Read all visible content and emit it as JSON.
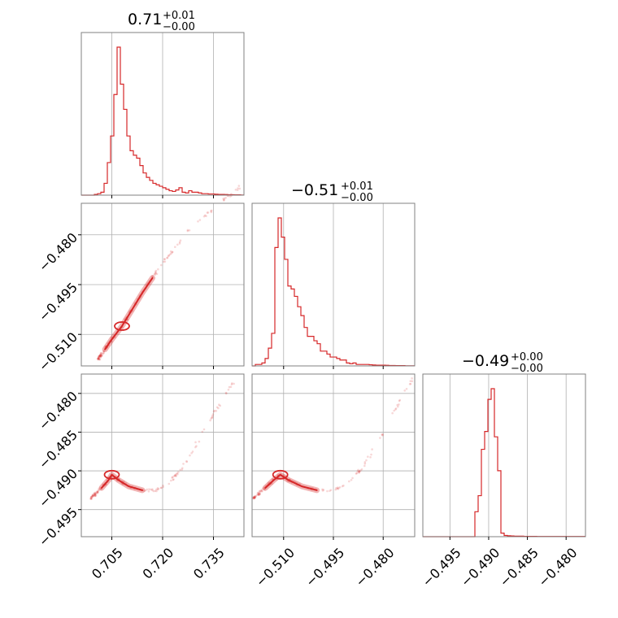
{
  "colors": {
    "series": "#d62728",
    "grid": "#b0b0b0",
    "frame": "#808080"
  },
  "chart_data": {
    "type": "corner",
    "parameters": [
      {
        "range": [
          0.696,
          0.744
        ],
        "ticks": [
          0.705,
          0.72,
          0.735
        ],
        "tick_labels": [
          "0.705",
          "0.720",
          "0.735"
        ],
        "title_main": "0.71",
        "title_plus": "+0.01",
        "title_minus": "−0.00"
      },
      {
        "range": [
          -0.5195,
          -0.4705
        ],
        "ticks": [
          -0.51,
          -0.495,
          -0.48
        ],
        "tick_labels": [
          "−0.510",
          "−0.495",
          "−0.480"
        ],
        "title_main": "−0.51",
        "title_plus": "+0.01",
        "title_minus": "−0.00"
      },
      {
        "range": [
          -0.4985,
          -0.4775
        ],
        "ticks": [
          -0.495,
          -0.49,
          -0.485,
          -0.48
        ],
        "tick_labels": [
          "−0.495",
          "−0.490",
          "−0.485",
          "−0.480"
        ],
        "title_main": "−0.49",
        "title_plus": "+0.00",
        "title_minus": "−0.00"
      }
    ],
    "histograms": [
      {
        "bins": [
          0.696,
          0.744
        ],
        "counts": [
          0,
          0,
          0,
          0,
          0.5,
          1,
          2,
          8,
          22,
          40,
          68,
          100,
          75,
          58,
          40,
          30,
          27,
          25,
          20,
          15,
          12,
          10,
          8,
          7,
          6,
          5,
          4,
          3,
          2.5,
          3.5,
          5,
          2,
          1.5,
          3,
          2,
          2,
          1.5,
          1,
          1,
          0.8,
          0.8,
          0.6,
          0.5,
          0.5,
          0.4,
          0.3,
          0.3,
          0.2,
          0.2,
          0.1
        ]
      },
      {
        "bins": [
          -0.5195,
          -0.4705
        ],
        "counts": [
          0,
          1,
          1,
          2,
          5,
          12,
          22,
          80,
          100,
          87,
          72,
          54,
          52,
          47,
          40,
          34,
          26,
          20,
          20,
          17,
          15,
          10,
          10,
          8,
          6,
          6,
          5,
          4,
          4,
          2,
          1.5,
          2,
          1,
          1,
          1,
          1,
          0.8,
          0.6,
          0.5,
          0.5,
          0.5,
          0.4,
          0.3,
          0.3,
          0.2,
          0.2,
          0.2,
          0.1,
          0.1,
          0.1
        ]
      },
      {
        "bins": [
          -0.4985,
          -0.4775
        ],
        "counts": [
          0,
          0,
          0,
          0,
          0,
          0,
          0,
          0,
          0,
          0,
          0,
          0,
          0,
          0,
          0,
          0,
          14,
          23,
          49,
          59,
          77,
          83,
          56,
          37,
          2,
          0.7,
          0.5,
          0.4,
          0.3,
          0.3,
          0.3,
          0.2,
          0.2,
          0.2,
          0.2,
          0.1,
          0.1,
          0.1,
          0.1,
          0.1,
          0.1,
          0.1,
          0.1,
          0.1,
          0.1,
          0.1,
          0.1,
          0.1,
          0.1,
          0.1
        ]
      }
    ],
    "scatter_2d": [
      {
        "x_param": 0,
        "y_param": 1,
        "trace": [
          [
            0.701,
            -0.5175
          ],
          [
            0.703,
            -0.5145
          ],
          [
            0.705,
            -0.5115
          ],
          [
            0.708,
            -0.5075
          ],
          [
            0.711,
            -0.5025
          ],
          [
            0.714,
            -0.4975
          ],
          [
            0.717,
            -0.493
          ],
          [
            0.72,
            -0.4885
          ],
          [
            0.724,
            -0.4835
          ],
          [
            0.728,
            -0.4785
          ],
          [
            0.733,
            -0.474
          ],
          [
            0.738,
            -0.4695
          ],
          [
            0.743,
            -0.4655
          ]
        ]
      },
      {
        "x_param": 0,
        "y_param": 2,
        "trace": [
          [
            0.699,
            -0.4935
          ],
          [
            0.702,
            -0.4922
          ],
          [
            0.704,
            -0.4912
          ],
          [
            0.705,
            -0.4905
          ],
          [
            0.707,
            -0.4912
          ],
          [
            0.71,
            -0.492
          ],
          [
            0.714,
            -0.4925
          ],
          [
            0.718,
            -0.4925
          ],
          [
            0.722,
            -0.4915
          ],
          [
            0.726,
            -0.4895
          ],
          [
            0.73,
            -0.4865
          ],
          [
            0.734,
            -0.4835
          ],
          [
            0.738,
            -0.4805
          ],
          [
            0.742,
            -0.478
          ]
        ]
      },
      {
        "x_param": 1,
        "y_param": 2,
        "trace": [
          [
            -0.519,
            -0.4935
          ],
          [
            -0.5155,
            -0.4922
          ],
          [
            -0.513,
            -0.4912
          ],
          [
            -0.511,
            -0.4905
          ],
          [
            -0.5085,
            -0.4912
          ],
          [
            -0.5045,
            -0.492
          ],
          [
            -0.5,
            -0.4925
          ],
          [
            -0.495,
            -0.4925
          ],
          [
            -0.4905,
            -0.4915
          ],
          [
            -0.486,
            -0.4895
          ],
          [
            -0.482,
            -0.4865
          ],
          [
            -0.478,
            -0.4835
          ],
          [
            -0.4745,
            -0.4805
          ],
          [
            -0.471,
            -0.478
          ]
        ]
      }
    ]
  }
}
